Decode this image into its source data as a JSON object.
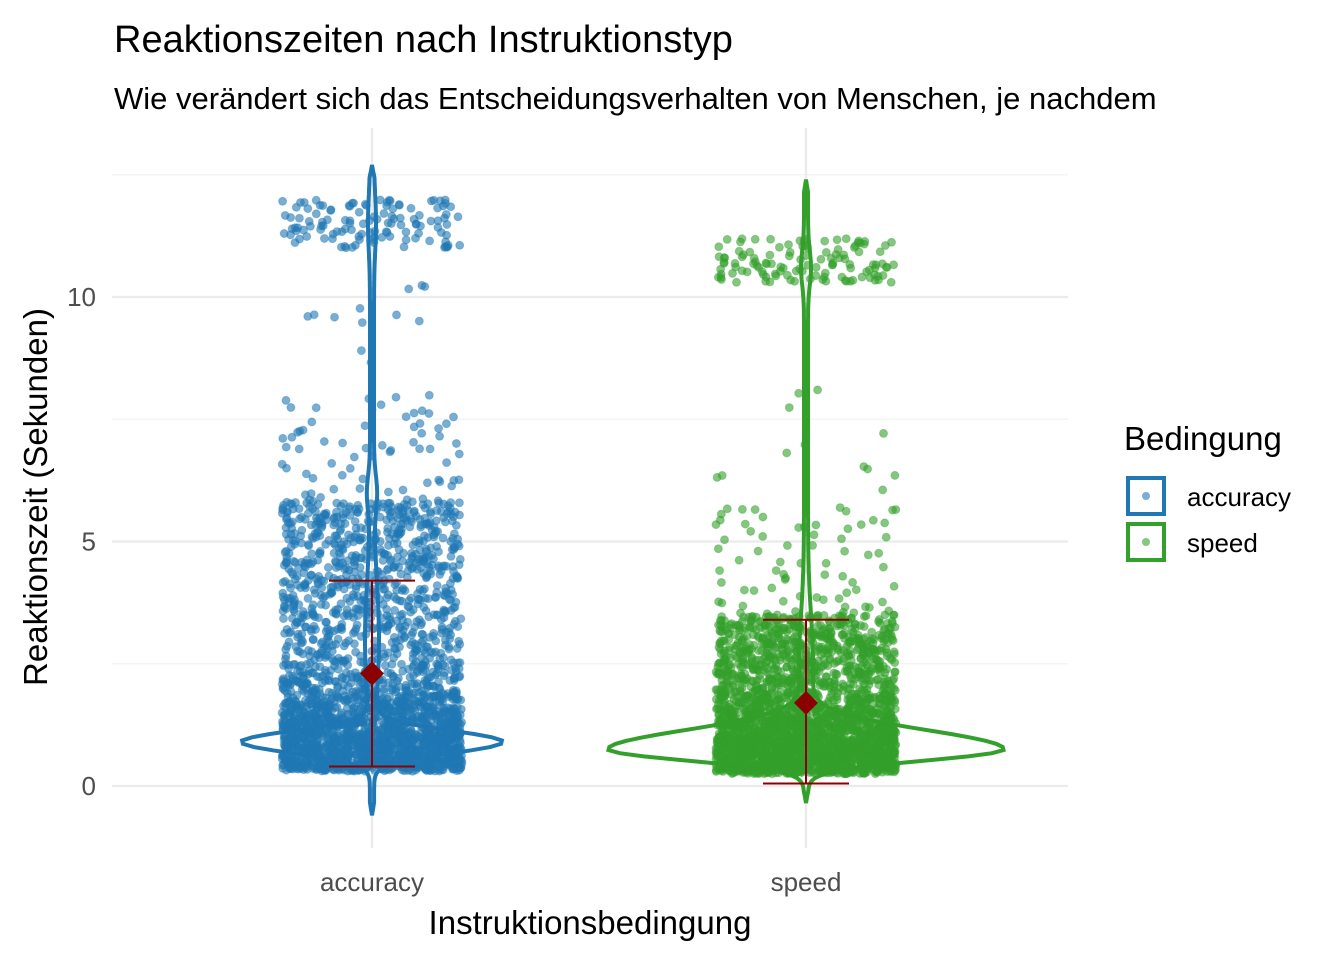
{
  "chart_data": {
    "type": "violin",
    "title": "Reaktionszeiten nach Instruktionstyp",
    "subtitle": "Wie verändert sich das Entscheidungsverhalten von Menschen, je nachdem",
    "xlabel": "Instruktionsbedingung",
    "ylabel": "Reaktionszeit (Sekunden)",
    "categories": [
      "accuracy",
      "speed"
    ],
    "ylim": [
      -1.3,
      13.3
    ],
    "yticks": [
      0,
      5,
      10
    ],
    "grid": true,
    "legend": {
      "title": "Bedingung",
      "position": "right",
      "entries": [
        "accuracy",
        "speed"
      ]
    },
    "colors": {
      "accuracy": "#1f78b4",
      "speed": "#33a02c",
      "summary": "#8b0000"
    },
    "series": [
      {
        "name": "accuracy",
        "mean": 2.3,
        "error_low": 0.4,
        "error_high": 4.2,
        "min": -0.6,
        "max": 12.7,
        "peak_density_at": 0.9,
        "dense_range": [
          0.3,
          5.8
        ],
        "outlier_cluster": [
          11.0,
          12.0
        ]
      },
      {
        "name": "speed",
        "mean": 1.7,
        "error_low": 0.05,
        "error_high": 3.4,
        "min": -0.35,
        "max": 12.4,
        "peak_density_at": 0.75,
        "dense_range": [
          0.25,
          3.5
        ],
        "outlier_cluster": [
          10.3,
          11.2
        ]
      }
    ]
  }
}
